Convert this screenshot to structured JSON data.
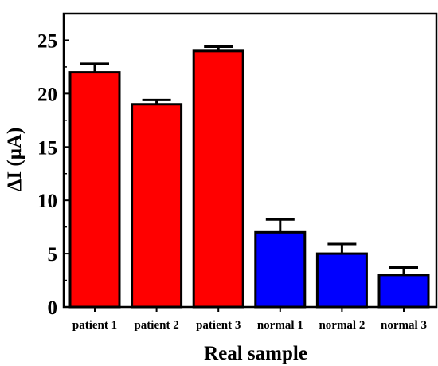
{
  "chart_data": {
    "type": "bar",
    "title": "",
    "xlabel": "Real sample",
    "ylabel": "ΔI (μA)",
    "categories": [
      "patient 1",
      "patient 2",
      "patient 3",
      "normal 1",
      "normal 2",
      "normal 3"
    ],
    "values": [
      22.0,
      19.0,
      24.0,
      7.0,
      5.0,
      3.0
    ],
    "errors": [
      0.8,
      0.4,
      0.4,
      1.2,
      0.9,
      0.7
    ],
    "bar_colors": [
      "#ff0000",
      "#ff0000",
      "#ff0000",
      "#0000ff",
      "#0000ff",
      "#0000ff"
    ],
    "edge_color": "#000000",
    "ylim": [
      0,
      27.5
    ],
    "yticks": [
      0,
      5,
      10,
      15,
      20,
      25
    ],
    "grid": false,
    "legend": "none"
  }
}
